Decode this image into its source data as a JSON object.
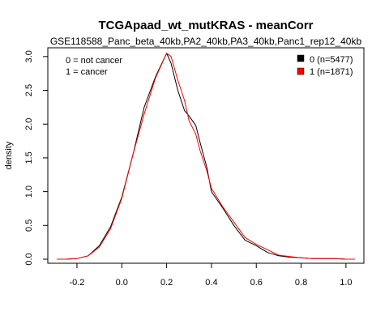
{
  "chart_data": {
    "type": "line",
    "title": "TCGApaad_wt_mutKRAS - meanCorr",
    "subtitle": "GSE118588_Panc_beta_40kb,PA2_40kb,PA3_40kb,Panc1_rep12_40kb",
    "xlabel": "",
    "ylabel": "density",
    "xlim": [
      -0.33,
      1.08
    ],
    "ylim": [
      -0.06,
      3.13
    ],
    "xticks": [
      -0.2,
      0.0,
      0.2,
      0.4,
      0.6,
      0.8,
      1.0
    ],
    "xtick_labels": [
      "-0.2",
      "0.0",
      "0.2",
      "0.4",
      "0.6",
      "0.8",
      "1.0"
    ],
    "yticks": [
      0.0,
      0.5,
      1.0,
      1.5,
      2.0,
      2.5,
      3.0
    ],
    "ytick_labels": [
      "0.0",
      "0.5",
      "1.0",
      "1.5",
      "2.0",
      "2.5",
      "3.0"
    ],
    "grid": false,
    "legend_position": "top-right",
    "annotations": [
      "0 = not cancer",
      "1 = cancer"
    ],
    "series": [
      {
        "name": "0 (n=5477)",
        "color": "#000000",
        "x": [
          -0.29,
          -0.25,
          -0.2,
          -0.15,
          -0.1,
          -0.05,
          0.0,
          0.05,
          0.1,
          0.15,
          0.2,
          0.22,
          0.25,
          0.28,
          0.3,
          0.33,
          0.35,
          0.38,
          0.4,
          0.45,
          0.5,
          0.55,
          0.6,
          0.65,
          0.7,
          0.75,
          0.8,
          0.85,
          0.9,
          0.95,
          1.0,
          1.04
        ],
        "y": [
          0.0,
          0.0,
          0.01,
          0.05,
          0.2,
          0.48,
          0.92,
          1.55,
          2.25,
          2.7,
          3.05,
          2.9,
          2.5,
          2.2,
          2.12,
          1.98,
          1.72,
          1.35,
          1.0,
          0.76,
          0.5,
          0.28,
          0.2,
          0.1,
          0.05,
          0.03,
          0.02,
          0.01,
          0.01,
          0.01,
          0.0,
          0.0
        ]
      },
      {
        "name": "1 (n=1871)",
        "color": "#ff0000",
        "x": [
          -0.29,
          -0.25,
          -0.2,
          -0.15,
          -0.1,
          -0.05,
          0.0,
          0.05,
          0.1,
          0.15,
          0.2,
          0.22,
          0.25,
          0.28,
          0.3,
          0.33,
          0.35,
          0.38,
          0.4,
          0.45,
          0.5,
          0.55,
          0.6,
          0.65,
          0.7,
          0.75,
          0.8,
          0.85,
          0.9,
          0.95,
          1.0,
          1.04
        ],
        "y": [
          0.0,
          0.0,
          0.01,
          0.05,
          0.18,
          0.45,
          0.9,
          1.55,
          2.15,
          2.68,
          3.05,
          3.0,
          2.65,
          2.35,
          2.05,
          1.85,
          1.6,
          1.3,
          1.05,
          0.78,
          0.55,
          0.32,
          0.22,
          0.14,
          0.06,
          0.04,
          0.02,
          0.01,
          0.01,
          0.01,
          0.0,
          0.0
        ]
      }
    ]
  }
}
